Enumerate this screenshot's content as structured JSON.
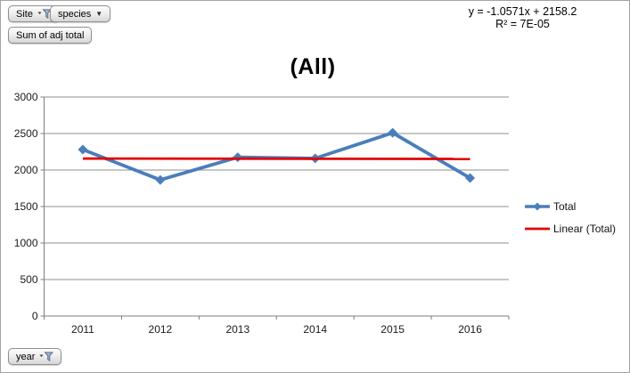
{
  "pivot_fields": {
    "site": "Site",
    "species": "species",
    "value": "Sum of adj total",
    "axis": "year"
  },
  "trendline_label": {
    "equation": "y = -1.0571x + 2158.2",
    "r_squared": "R² = 7E-05"
  },
  "chart_data": {
    "type": "line",
    "title": "(All)",
    "categories": [
      "2011",
      "2012",
      "2013",
      "2014",
      "2015",
      "2016"
    ],
    "series": [
      {
        "name": "Total",
        "values": [
          2280,
          1865,
          2175,
          2160,
          2510,
          1890
        ],
        "color": "#4a7ebb",
        "marker": "diamond"
      }
    ],
    "trendline": {
      "name": "Linear (Total)",
      "color": "#e00000",
      "slope": -1.0571,
      "intercept": 2158.2,
      "r_squared": "7E-05"
    },
    "ylim": [
      0,
      3000
    ],
    "ytick_step": 500,
    "xlabel": "",
    "ylabel": "",
    "gridlines": true,
    "legend_position": "right",
    "colors": {
      "gridline": "#8f8f8f",
      "axis": "#7f7f7f",
      "tick_label": "#1a1a1a"
    }
  }
}
